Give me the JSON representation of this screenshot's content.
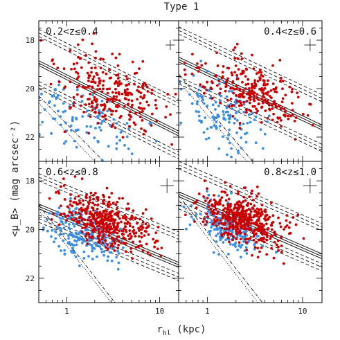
{
  "figure": {
    "title": "Type 1",
    "xlabel_main": "r",
    "xlabel_sub": "hl",
    "xlabel_unit": " (kpc)",
    "ylabel": "<μ_B> (mag arcsec⁻²)"
  },
  "colors": {
    "red": "#cc0000",
    "blue": "#3a8ee6",
    "line": "#111111"
  },
  "chart_data": [
    {
      "type": "scatter",
      "label": "0.2<z≤0.4",
      "xscale": "log",
      "xlim": [
        0.5,
        16
      ],
      "ylim": [
        23,
        17.2
      ],
      "yaxis_inverted": true,
      "xticks": [
        1,
        10
      ],
      "yticks": [
        18,
        20,
        22
      ],
      "seed": 11,
      "series": [
        {
          "color": "red",
          "clusters": [
            {
              "cx": 3.0,
              "cy": 20.2,
              "sx": 0.28,
              "sy": 0.75,
              "n": 260
            }
          ]
        },
        {
          "color": "blue",
          "clusters": [
            {
              "cx": 1.5,
              "cy": 21.3,
              "sx": 0.33,
              "sy": 0.75,
              "n": 110
            }
          ]
        }
      ],
      "reference_lines": {
        "solid": [
          [
            [
              0.5,
              18.85
            ],
            [
              16,
              21.75
            ]
          ],
          [
            [
              0.5,
              18.95
            ],
            [
              16,
              21.85
            ]
          ],
          [
            [
              0.5,
              19.05
            ],
            [
              16,
              21.95
            ]
          ]
        ],
        "dashed": [
          [
            [
              0.5,
              17.55
            ],
            [
              16,
              20.45
            ]
          ],
          [
            [
              0.5,
              17.7
            ],
            [
              16,
              20.6
            ]
          ],
          [
            [
              0.5,
              17.85
            ],
            [
              16,
              20.75
            ]
          ],
          [
            [
              0.5,
              19.7
            ],
            [
              16,
              22.6
            ]
          ],
          [
            [
              0.5,
              19.85
            ],
            [
              16,
              22.75
            ]
          ],
          [
            [
              0.5,
              20.0
            ],
            [
              16,
              22.9
            ]
          ]
        ],
        "dotted": [
          [
            [
              0.5,
              20.6
            ],
            [
              2.0,
              23.0
            ]
          ]
        ],
        "dashdot": [
          [
            [
              0.5,
              20.3
            ],
            [
              2.5,
              23.0
            ]
          ]
        ]
      },
      "errorbar": {
        "x": 13.0,
        "y": 18.2,
        "dx_factor": 1.12,
        "dy": 0.2
      }
    },
    {
      "type": "scatter",
      "label": "0.4<z≤0.6",
      "xscale": "log",
      "xlim": [
        0.5,
        16
      ],
      "ylim": [
        23,
        17.2
      ],
      "yaxis_inverted": true,
      "xticks": [
        1,
        10
      ],
      "yticks": [
        18,
        20,
        22
      ],
      "seed": 23,
      "series": [
        {
          "color": "red",
          "clusters": [
            {
              "cx": 2.8,
              "cy": 20.1,
              "sx": 0.27,
              "sy": 0.6,
              "n": 270
            }
          ]
        },
        {
          "color": "blue",
          "clusters": [
            {
              "cx": 1.4,
              "cy": 20.9,
              "sx": 0.2,
              "sy": 0.7,
              "n": 140
            }
          ]
        }
      ],
      "reference_lines": {
        "solid": [
          [
            [
              0.5,
              18.7
            ],
            [
              16,
              21.5
            ]
          ],
          [
            [
              0.5,
              18.8
            ],
            [
              16,
              21.6
            ]
          ],
          [
            [
              0.5,
              18.9
            ],
            [
              16,
              21.7
            ]
          ]
        ],
        "dashed": [
          [
            [
              0.5,
              17.45
            ],
            [
              16,
              20.25
            ]
          ],
          [
            [
              0.5,
              17.6
            ],
            [
              16,
              20.4
            ]
          ],
          [
            [
              0.5,
              17.75
            ],
            [
              16,
              20.55
            ]
          ],
          [
            [
              0.5,
              19.5
            ],
            [
              16,
              22.3
            ]
          ],
          [
            [
              0.5,
              19.65
            ],
            [
              16,
              22.45
            ]
          ],
          [
            [
              0.5,
              19.8
            ],
            [
              16,
              22.6
            ]
          ]
        ],
        "dotted": [
          [
            [
              0.5,
              19.7
            ],
            [
              2.6,
              23.0
            ]
          ]
        ],
        "dashdot": [
          [
            [
              0.5,
              19.4
            ],
            [
              3.0,
              23.0
            ]
          ]
        ]
      },
      "errorbar": {
        "x": 12.0,
        "y": 18.2,
        "dx_factor": 1.15,
        "dy": 0.25
      }
    },
    {
      "type": "scatter",
      "label": "0.6<z≤0.8",
      "xscale": "log",
      "xlim": [
        0.5,
        16
      ],
      "ylim": [
        23,
        17.2
      ],
      "yaxis_inverted": true,
      "xticks": [
        1,
        10
      ],
      "yticks": [
        18,
        20,
        22
      ],
      "seed": 37,
      "series": [
        {
          "color": "red",
          "clusters": [
            {
              "cx": 2.7,
              "cy": 19.7,
              "sx": 0.24,
              "sy": 0.5,
              "n": 430
            }
          ]
        },
        {
          "color": "blue",
          "clusters": [
            {
              "cx": 1.5,
              "cy": 20.2,
              "sx": 0.18,
              "sy": 0.55,
              "n": 230
            }
          ]
        }
      ],
      "reference_lines": {
        "solid": [
          [
            [
              0.5,
              18.95
            ],
            [
              16,
              21.35
            ]
          ],
          [
            [
              0.5,
              19.05
            ],
            [
              16,
              21.45
            ]
          ],
          [
            [
              0.5,
              19.15
            ],
            [
              16,
              21.55
            ]
          ]
        ],
        "dashed": [
          [
            [
              0.5,
              17.7
            ],
            [
              16,
              20.1
            ]
          ],
          [
            [
              0.5,
              17.85
            ],
            [
              16,
              20.25
            ]
          ],
          [
            [
              0.5,
              18.0
            ],
            [
              16,
              20.4
            ]
          ],
          [
            [
              0.5,
              19.4
            ],
            [
              16,
              21.8
            ]
          ],
          [
            [
              0.5,
              19.55
            ],
            [
              16,
              21.95
            ]
          ],
          [
            [
              0.5,
              19.7
            ],
            [
              16,
              22.1
            ]
          ]
        ],
        "dotted": [
          [
            [
              0.5,
              19.2
            ],
            [
              3.0,
              23.0
            ]
          ]
        ],
        "dashdot": [
          [
            [
              0.5,
              19.0
            ],
            [
              3.3,
              23.0
            ]
          ]
        ]
      },
      "errorbar": {
        "x": 12.0,
        "y": 18.2,
        "dx_factor": 1.18,
        "dy": 0.3
      }
    },
    {
      "type": "scatter",
      "label": "0.8<z≤1.0",
      "xscale": "log",
      "xlim": [
        0.5,
        16
      ],
      "ylim": [
        23,
        17.2
      ],
      "yaxis_inverted": true,
      "xticks": [
        1,
        10
      ],
      "yticks": [
        18,
        20,
        22
      ],
      "seed": 53,
      "series": [
        {
          "color": "red",
          "clusters": [
            {
              "cx": 2.5,
              "cy": 19.6,
              "sx": 0.22,
              "sy": 0.5,
              "n": 470
            }
          ]
        },
        {
          "color": "blue",
          "clusters": [
            {
              "cx": 1.7,
              "cy": 19.9,
              "sx": 0.18,
              "sy": 0.5,
              "n": 210
            }
          ]
        }
      ],
      "reference_lines": {
        "solid": [
          [
            [
              0.5,
              18.45
            ],
            [
              16,
              21.0
            ]
          ],
          [
            [
              0.5,
              18.55
            ],
            [
              16,
              21.1
            ]
          ],
          [
            [
              0.5,
              18.65
            ],
            [
              16,
              21.2
            ]
          ]
        ],
        "dashed": [
          [
            [
              0.5,
              17.2
            ],
            [
              16,
              19.75
            ]
          ],
          [
            [
              0.5,
              17.35
            ],
            [
              16,
              19.9
            ]
          ],
          [
            [
              0.5,
              17.5
            ],
            [
              16,
              20.05
            ]
          ],
          [
            [
              0.5,
              18.85
            ],
            [
              16,
              21.4
            ]
          ],
          [
            [
              0.5,
              19.0
            ],
            [
              16,
              21.55
            ]
          ],
          [
            [
              0.5,
              19.15
            ],
            [
              16,
              21.7
            ]
          ]
        ],
        "dotted": [
          [
            [
              0.5,
              18.8
            ],
            [
              3.4,
              23.0
            ]
          ]
        ],
        "dashdot": [
          [
            [
              0.5,
              18.6
            ],
            [
              3.8,
              23.0
            ]
          ]
        ]
      },
      "errorbar": {
        "x": 12.0,
        "y": 18.2,
        "dx_factor": 1.18,
        "dy": 0.3
      }
    }
  ]
}
